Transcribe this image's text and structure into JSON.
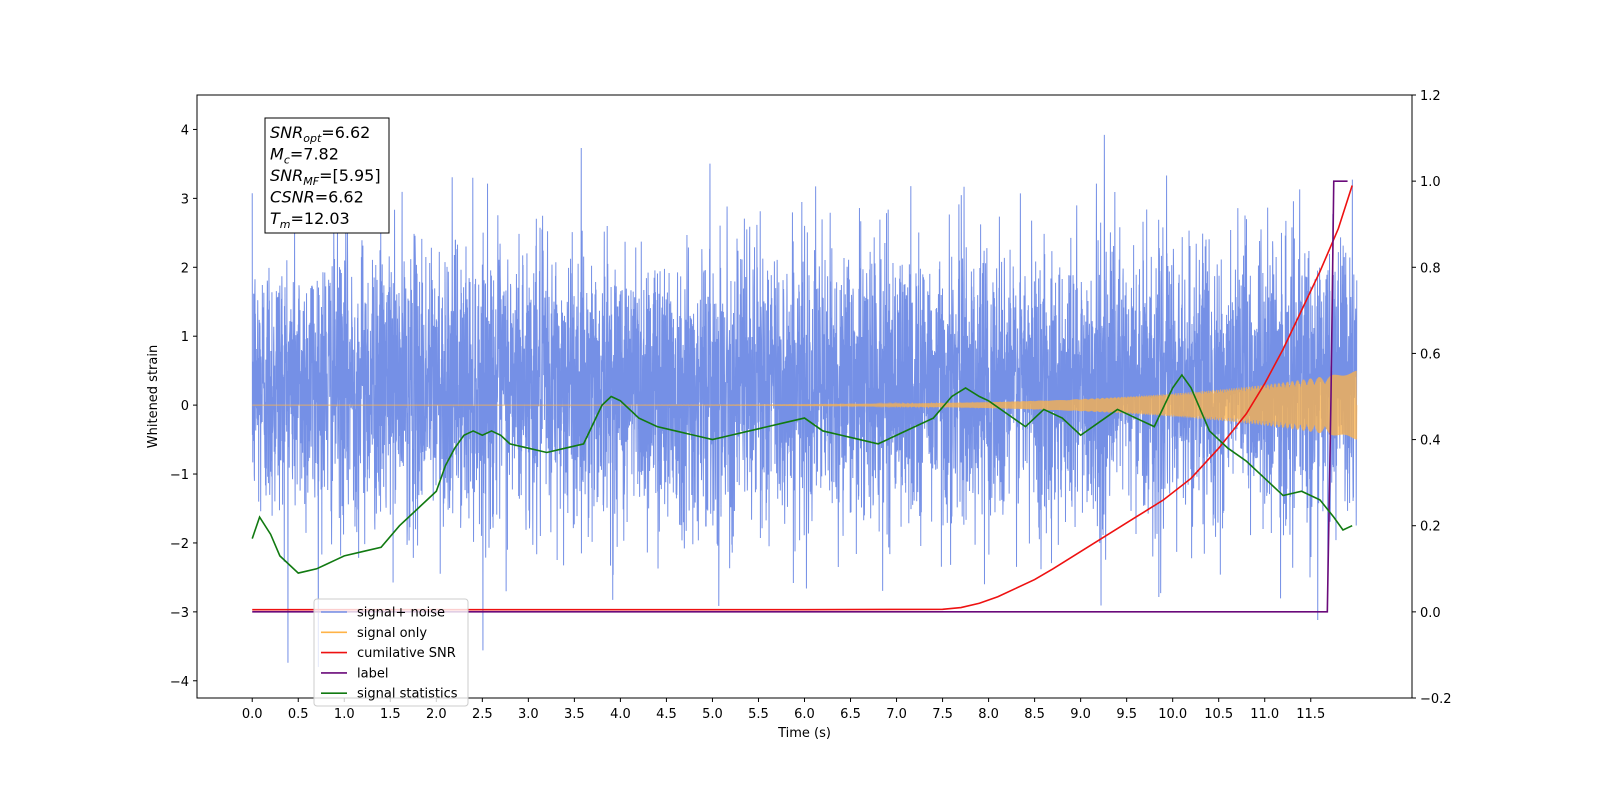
{
  "chart_data": {
    "type": "line",
    "xlabel": "Time (s)",
    "ylabel": "Whitened strain",
    "xlim": [
      -0.6,
      12.6
    ],
    "ylim": [
      -4.25,
      4.5
    ],
    "y2lim": [
      -0.2,
      1.2
    ],
    "x_ticks": [
      0.0,
      0.5,
      1.0,
      1.5,
      2.0,
      2.5,
      3.0,
      3.5,
      4.0,
      4.5,
      5.0,
      5.5,
      6.0,
      6.5,
      7.0,
      7.5,
      8.0,
      8.5,
      9.0,
      9.5,
      10.0,
      10.5,
      11.0,
      11.5
    ],
    "x_tick_labels": [
      "0.0",
      "0.5",
      "1.0",
      "1.5",
      "2.0",
      "2.5",
      "3.0",
      "3.5",
      "4.0",
      "4.5",
      "5.0",
      "5.5",
      "6.0",
      "6.5",
      "7.0",
      "7.5",
      "8.0",
      "8.5",
      "9.0",
      "9.5",
      "10.0",
      "10.5",
      "11.0",
      "11.5"
    ],
    "y_ticks": [
      -4,
      -3,
      -2,
      -1,
      0,
      1,
      2,
      3,
      4
    ],
    "y_tick_labels": [
      "−4",
      "−3",
      "−2",
      "−1",
      "0",
      "1",
      "2",
      "3",
      "4"
    ],
    "y2_ticks": [
      -0.2,
      0.0,
      0.2,
      0.4,
      0.6,
      0.8,
      1.0,
      1.2
    ],
    "y2_tick_labels": [
      "−0.2",
      "0.0",
      "0.2",
      "0.4",
      "0.6",
      "0.8",
      "1.0",
      "1.2"
    ],
    "grid": false,
    "legend_position": "lower-left",
    "annotation": {
      "lines": [
        {
          "base": "SNR",
          "sub": "opt",
          "value": "=6.62"
        },
        {
          "base": "M",
          "sub": "c",
          "value": "=7.82"
        },
        {
          "base": "SNR",
          "sub": "MF",
          "value": "=[5.95]"
        },
        {
          "base": "CSNR",
          "sub": "",
          "value": "=6.62"
        },
        {
          "base": "T",
          "sub": "m",
          "value": "=12.03"
        }
      ]
    },
    "series": [
      {
        "name": "signal+ noise",
        "color": "#7590e6",
        "axis": "left",
        "kind": "noise",
        "x_range": [
          0.0,
          12.0
        ],
        "mean": 0.3,
        "std": 1.0,
        "max": 4.1,
        "min": -3.8
      },
      {
        "name": "signal only",
        "color": "#ffb347",
        "axis": "left",
        "kind": "chirp",
        "x_range": [
          0.0,
          12.0
        ],
        "envelope_start": 0.0,
        "envelope_end": 0.5
      },
      {
        "name": "cumilative SNR",
        "color": "#ee1111",
        "axis": "right",
        "x": [
          0.0,
          6.0,
          7.5,
          7.7,
          7.9,
          8.1,
          8.3,
          8.5,
          8.7,
          9.0,
          9.3,
          9.6,
          9.9,
          10.2,
          10.5,
          10.8,
          11.0,
          11.2,
          11.4,
          11.6,
          11.8,
          11.95
        ],
        "y": [
          0.005,
          0.005,
          0.006,
          0.01,
          0.02,
          0.035,
          0.055,
          0.075,
          0.1,
          0.14,
          0.18,
          0.22,
          0.26,
          0.31,
          0.38,
          0.46,
          0.53,
          0.61,
          0.7,
          0.79,
          0.89,
          0.99
        ]
      },
      {
        "name": "label",
        "color": "#6a0a7a",
        "axis": "right",
        "x": [
          0.0,
          11.68,
          11.72,
          11.75,
          11.9
        ],
        "y": [
          0.0,
          0.0,
          0.5,
          1.0,
          1.0
        ]
      },
      {
        "name": "signal statistics",
        "color": "#117a11",
        "axis": "right",
        "x": [
          0.0,
          0.08,
          0.2,
          0.3,
          0.4,
          0.5,
          0.6,
          0.7,
          0.8,
          0.9,
          1.0,
          1.2,
          1.4,
          1.6,
          1.8,
          1.9,
          2.0,
          2.1,
          2.2,
          2.3,
          2.4,
          2.5,
          2.6,
          2.7,
          2.8,
          3.0,
          3.2,
          3.4,
          3.6,
          3.8,
          3.9,
          4.0,
          4.1,
          4.2,
          4.4,
          4.6,
          4.8,
          5.0,
          5.2,
          5.4,
          5.6,
          5.8,
          6.0,
          6.2,
          6.4,
          6.6,
          6.8,
          7.0,
          7.2,
          7.4,
          7.6,
          7.75,
          7.9,
          8.0,
          8.2,
          8.4,
          8.6,
          8.8,
          9.0,
          9.2,
          9.4,
          9.6,
          9.8,
          10.0,
          10.1,
          10.2,
          10.4,
          10.6,
          10.8,
          11.0,
          11.2,
          11.4,
          11.6,
          11.75,
          11.85,
          11.95
        ],
        "y": [
          0.17,
          0.22,
          0.18,
          0.13,
          0.11,
          0.09,
          0.095,
          0.1,
          0.11,
          0.12,
          0.13,
          0.14,
          0.15,
          0.2,
          0.24,
          0.26,
          0.28,
          0.34,
          0.38,
          0.41,
          0.42,
          0.41,
          0.42,
          0.41,
          0.39,
          0.38,
          0.37,
          0.38,
          0.39,
          0.48,
          0.5,
          0.49,
          0.47,
          0.45,
          0.43,
          0.42,
          0.41,
          0.4,
          0.41,
          0.42,
          0.43,
          0.44,
          0.45,
          0.42,
          0.41,
          0.4,
          0.39,
          0.41,
          0.43,
          0.45,
          0.5,
          0.52,
          0.5,
          0.49,
          0.46,
          0.43,
          0.47,
          0.45,
          0.41,
          0.44,
          0.47,
          0.45,
          0.43,
          0.52,
          0.55,
          0.52,
          0.42,
          0.38,
          0.35,
          0.31,
          0.27,
          0.28,
          0.26,
          0.22,
          0.19,
          0.2
        ]
      }
    ]
  }
}
